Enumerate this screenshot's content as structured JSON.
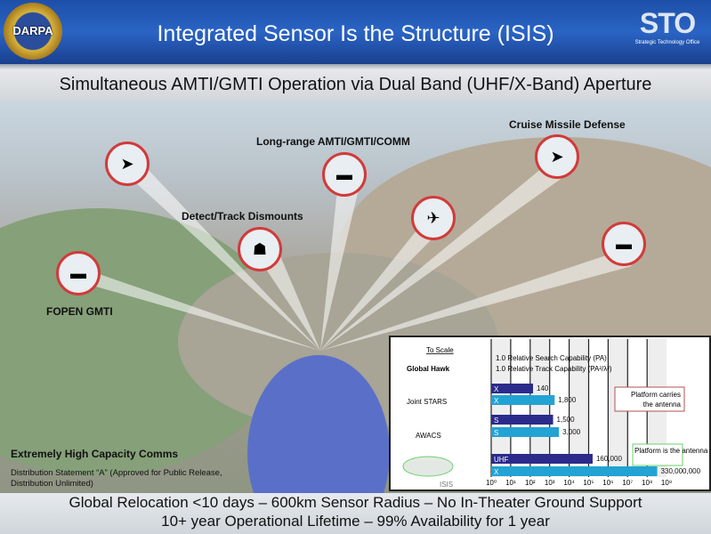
{
  "header": {
    "title": "Integrated Sensor Is the Structure (ISIS)",
    "left_logo": "DARPA - Bridging The Gap - Powered By Ideas",
    "right_logo": {
      "mark": "STO",
      "caption": "Strategic Technology Office"
    }
  },
  "subtitle": "Simultaneous AMTI/GMTI Operation via Dual Band (UHF/X-Band) Aperture",
  "scene_labels": {
    "fopen": "FOPEN GMTI",
    "dismounts": "Detect/Track Dismounts",
    "longrange": "Long-range AMTI/GMTI/COMM",
    "cruise": "Cruise Missile Defense",
    "comms": "Extremely High Capacity Comms",
    "distribution": "Distribution Statement “A” (Approved for Public Release, Distribution Unlimited)"
  },
  "footer": {
    "line1": "Global Relocation <10 days –  600km Sensor Radius – No In-Theater Ground Support",
    "line2": "10+ year Operational Lifetime – 99% Availability for 1 year"
  },
  "chart_data": {
    "type": "bar",
    "orientation": "horizontal",
    "xscale": "log",
    "xlim": [
      1,
      1000000000
    ],
    "x_ticks": [
      "10⁰",
      "10¹",
      "10²",
      "10³",
      "10⁴",
      "10⁵",
      "10⁶",
      "10⁷",
      "10⁸",
      "10⁹"
    ],
    "to_scale": "To Scale",
    "legend": {
      "search": "1.0 Relative Search Capability (PA)",
      "track": "1.0 Relative Track Capability (PA²/λ²)"
    },
    "platforms": [
      "Global Hawk",
      "Joint STARS",
      "AWACS",
      "ISIS"
    ],
    "bars": [
      {
        "platform": "Joint STARS",
        "band": "X",
        "kind": "search",
        "value": 140,
        "label": "140"
      },
      {
        "platform": "Joint STARS",
        "band": "X",
        "kind": "track",
        "value": 1800,
        "label": "1,800"
      },
      {
        "platform": "AWACS",
        "band": "S",
        "kind": "search",
        "value": 1500,
        "label": "1,500"
      },
      {
        "platform": "AWACS",
        "band": "S",
        "kind": "track",
        "value": 3000,
        "label": "3,000"
      },
      {
        "platform": "ISIS",
        "band": "UHF",
        "kind": "search",
        "value": 160000,
        "label": "160,000"
      },
      {
        "platform": "ISIS",
        "band": "X",
        "kind": "track",
        "value": 330000000,
        "label": "330,000,000"
      }
    ],
    "annotations": {
      "carries": "Platform carries the antenna",
      "is": "Platform is the antenna"
    },
    "colors": {
      "search": "#2b2b8c",
      "track": "#22a3d4"
    }
  }
}
